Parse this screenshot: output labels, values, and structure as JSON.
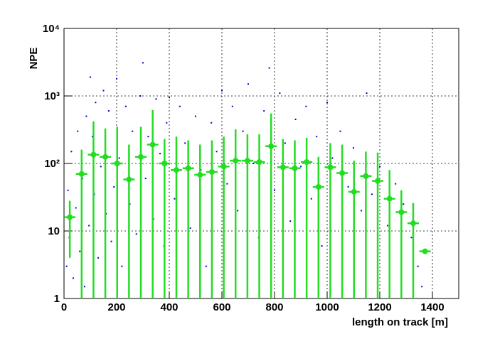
{
  "chart_data": {
    "type": "scatter",
    "xlabel": "length on track [m]",
    "ylabel": "NPE",
    "xlim": [
      0,
      1500
    ],
    "ylim": [
      1,
      10000
    ],
    "log_y": true,
    "grid": true,
    "xticks": [
      0,
      200,
      400,
      600,
      800,
      1000,
      1200,
      1400
    ],
    "yticks": [
      1,
      10,
      {
        "value": 100,
        "label": "10²"
      },
      {
        "value": 1000,
        "label": "10³"
      },
      {
        "value": 10000,
        "label": "10⁴"
      }
    ],
    "scatter": {
      "color": "#0000cc",
      "x": [
        10,
        15,
        20,
        28,
        35,
        45,
        52,
        60,
        70,
        78,
        85,
        95,
        100,
        108,
        115,
        120,
        130,
        140,
        150,
        160,
        170,
        180,
        190,
        200,
        210,
        220,
        235,
        250,
        260,
        275,
        290,
        300,
        310,
        320,
        340,
        350,
        365,
        380,
        390,
        400,
        420,
        440,
        460,
        480,
        500,
        520,
        540,
        560,
        580,
        600,
        620,
        640,
        660,
        680,
        700,
        720,
        740,
        760,
        780,
        800,
        820,
        840,
        860,
        880,
        900,
        920,
        940,
        960,
        980,
        1000,
        1020,
        1050,
        1080,
        1100,
        1130,
        1150,
        1170,
        1200,
        1230,
        1260,
        1290,
        1320,
        1345,
        1360
      ],
      "y": [
        3,
        40,
        8,
        150,
        2,
        22,
        300,
        5,
        60,
        1.5,
        500,
        12,
        1900,
        250,
        35,
        800,
        4,
        90,
        1200,
        18,
        600,
        7,
        45,
        1800,
        120,
        3,
        700,
        25,
        300,
        9,
        1000,
        3100,
        60,
        250,
        15,
        900,
        140,
        6,
        400,
        950,
        30,
        700,
        200,
        11,
        500,
        80,
        3,
        400,
        150,
        1200,
        50,
        700,
        20,
        300,
        1500,
        100,
        8,
        600,
        2600,
        40,
        1100,
        200,
        14,
        450,
        90,
        700,
        30,
        250,
        6,
        800,
        120,
        300,
        45,
        170,
        20,
        1100,
        35,
        90,
        12,
        50,
        25,
        8,
        3,
        1.5
      ]
    },
    "profile": {
      "color": "#22dd22",
      "x": [
        22,
        67,
        112,
        157,
        202,
        247,
        292,
        337,
        382,
        427,
        472,
        517,
        562,
        607,
        652,
        697,
        742,
        787,
        832,
        877,
        922,
        967,
        1012,
        1057,
        1102,
        1147,
        1192,
        1237,
        1282,
        1327,
        1372
      ],
      "values": [
        16,
        70,
        135,
        125,
        100,
        58,
        125,
        190,
        100,
        80,
        85,
        68,
        75,
        90,
        110,
        110,
        105,
        180,
        88,
        85,
        105,
        45,
        88,
        72,
        38,
        65,
        55,
        30,
        19,
        13,
        5
      ],
      "errors": [
        12,
        90,
        285,
        205,
        250,
        132,
        225,
        430,
        130,
        170,
        135,
        122,
        145,
        160,
        210,
        160,
        165,
        370,
        142,
        135,
        135,
        80,
        112,
        118,
        72,
        85,
        90,
        50,
        21,
        13,
        0
      ]
    }
  }
}
